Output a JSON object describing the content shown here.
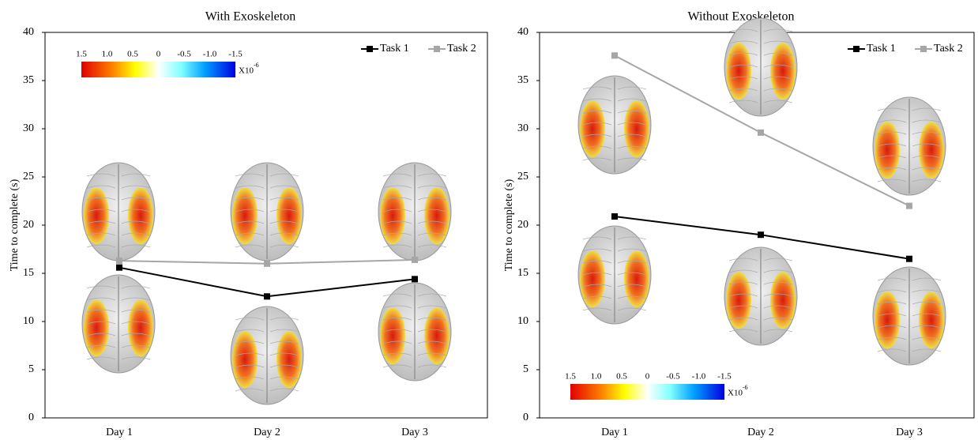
{
  "chart_data": [
    {
      "type": "line",
      "title": "With Exoskeleton",
      "ylabel": "Time to complete  (s)",
      "categories": [
        "Day 1",
        "Day 2",
        "Day 3"
      ],
      "series": [
        {
          "name": "Task 1",
          "color": "#000000",
          "values": [
            15.6,
            12.6,
            14.4
          ]
        },
        {
          "name": "Task 2",
          "color": "#a6a6a6",
          "values": [
            16.3,
            16.0,
            16.4
          ]
        }
      ],
      "ylim": [
        0,
        40
      ],
      "yticks": [
        0,
        5,
        10,
        15,
        20,
        25,
        30,
        35,
        40
      ],
      "legend": "upper right",
      "colorbar": {
        "labels": [
          "1.5",
          "1.0",
          "0.5",
          "0",
          "-0.5",
          "-1.0",
          "-1.5"
        ],
        "unit": "X10",
        "unit_exponent": "-6",
        "position": "upper left"
      }
    },
    {
      "type": "line",
      "title": "Without Exoskeleton",
      "ylabel": "Time to complete  (s)",
      "categories": [
        "Day 1",
        "Day 2",
        "Day 3"
      ],
      "series": [
        {
          "name": "Task 1",
          "color": "#000000",
          "values": [
            20.9,
            19.0,
            16.5
          ]
        },
        {
          "name": "Task 2",
          "color": "#a6a6a6",
          "values": [
            37.6,
            29.6,
            22.0
          ]
        }
      ],
      "ylim": [
        0,
        40
      ],
      "yticks": [
        0,
        5,
        10,
        15,
        20,
        25,
        30,
        35,
        40
      ],
      "legend": "upper right",
      "colorbar": {
        "labels": [
          "1.5",
          "1.0",
          "0.5",
          "0",
          "-0.5",
          "-1.0",
          "-1.5"
        ],
        "unit": "X10",
        "unit_exponent": "-6",
        "position": "lower left"
      }
    }
  ]
}
